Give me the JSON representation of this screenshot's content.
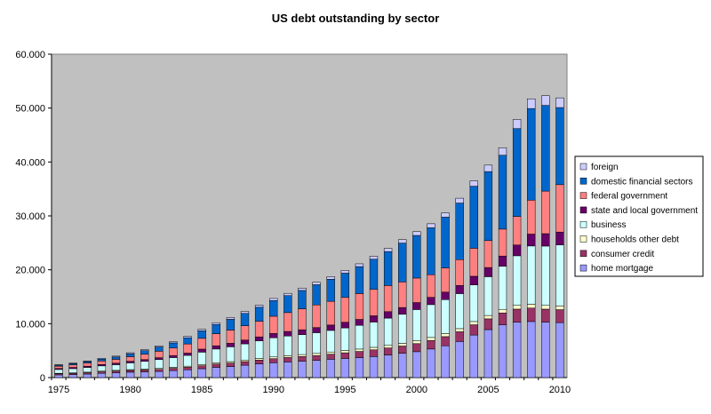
{
  "chart_data": {
    "type": "bar",
    "stacked": true,
    "title": "US debt outstanding by sector",
    "xlabel": "",
    "ylabel": "",
    "ylim": [
      0,
      60000
    ],
    "yticks": [
      "0",
      "10.000",
      "20.000",
      "30.000",
      "40.000",
      "50.000",
      "60.000"
    ],
    "ytick_values": [
      0,
      10000,
      20000,
      30000,
      40000,
      50000,
      60000
    ],
    "xticks": [
      "1975",
      "1980",
      "1985",
      "1990",
      "1995",
      "2000",
      "2005",
      "2010"
    ],
    "categories": [
      1975,
      1976,
      1977,
      1978,
      1979,
      1980,
      1981,
      1982,
      1983,
      1984,
      1985,
      1986,
      1987,
      1988,
      1989,
      1990,
      1991,
      1992,
      1993,
      1994,
      1995,
      1996,
      1997,
      1998,
      1999,
      2000,
      2001,
      2002,
      2003,
      2004,
      2005,
      2006,
      2007,
      2008,
      2009,
      2010
    ],
    "grid": false,
    "legend_position": "right",
    "plot_background": "#c0c0c0",
    "series": [
      {
        "name": "home mortgage",
        "color": "#9999ff",
        "values": [
          500,
          550,
          650,
          800,
          900,
          1000,
          1050,
          1150,
          1300,
          1450,
          1650,
          1900,
          2050,
          2300,
          2550,
          2750,
          2900,
          3050,
          3200,
          3400,
          3550,
          3700,
          3900,
          4200,
          4500,
          4800,
          5300,
          5900,
          6700,
          7900,
          8900,
          9800,
          10300,
          10400,
          10300,
          10200
        ]
      },
      {
        "name": "consumer credit",
        "color": "#993366",
        "values": [
          200,
          220,
          240,
          270,
          300,
          330,
          360,
          380,
          420,
          460,
          540,
          600,
          640,
          670,
          700,
          760,
          820,
          860,
          900,
          950,
          1050,
          1150,
          1250,
          1300,
          1350,
          1500,
          1600,
          1700,
          1800,
          1900,
          2000,
          2200,
          2400,
          2500,
          2400,
          2400
        ]
      },
      {
        "name": "households other debt",
        "color": "#ffffcc",
        "values": [
          100,
          110,
          120,
          130,
          140,
          150,
          160,
          170,
          190,
          210,
          230,
          250,
          270,
          290,
          300,
          320,
          340,
          360,
          380,
          400,
          420,
          440,
          460,
          480,
          500,
          520,
          540,
          560,
          580,
          600,
          620,
          650,
          700,
          720,
          700,
          700
        ]
      },
      {
        "name": "business",
        "color": "#ccffff",
        "values": [
          700,
          780,
          870,
          970,
          1050,
          1250,
          1450,
          1650,
          1800,
          2000,
          2300,
          2550,
          2750,
          3000,
          3250,
          3550,
          3650,
          3700,
          3850,
          4000,
          4200,
          4400,
          4700,
          5050,
          5400,
          5800,
          6100,
          6300,
          6500,
          6800,
          7200,
          8000,
          9200,
          10800,
          11000,
          11300
        ]
      },
      {
        "name": "state and local government",
        "color": "#660066",
        "values": [
          200,
          220,
          240,
          260,
          280,
          300,
          320,
          340,
          380,
          420,
          560,
          600,
          650,
          700,
          750,
          800,
          850,
          900,
          950,
          1000,
          1050,
          1100,
          1150,
          1200,
          1250,
          1300,
          1350,
          1400,
          1500,
          1600,
          1700,
          1900,
          2000,
          2200,
          2300,
          2400
        ]
      },
      {
        "name": "federal government",
        "color": "#ff8080",
        "values": [
          400,
          480,
          570,
          650,
          720,
          850,
          1000,
          1200,
          1400,
          1700,
          2000,
          2250,
          2450,
          2650,
          2900,
          3200,
          3500,
          3900,
          4200,
          4400,
          4600,
          4800,
          4900,
          4850,
          4750,
          4550,
          4200,
          4500,
          4800,
          5200,
          5000,
          5000,
          5300,
          6300,
          7900,
          8800
        ]
      },
      {
        "name": "domestic financial sectors",
        "color": "#0066cc",
        "values": [
          200,
          230,
          280,
          350,
          430,
          550,
          650,
          780,
          950,
          1150,
          1400,
          1700,
          2000,
          2300,
          2600,
          2900,
          3150,
          3400,
          3750,
          4100,
          4500,
          5000,
          5600,
          6300,
          7200,
          7900,
          8700,
          9400,
          10500,
          11500,
          12800,
          13700,
          16300,
          17000,
          15900,
          14300
        ]
      },
      {
        "name": "foreign",
        "color": "#ccccff",
        "values": [
          100,
          110,
          120,
          140,
          160,
          180,
          200,
          220,
          240,
          260,
          280,
          300,
          330,
          360,
          380,
          400,
          420,
          440,
          460,
          480,
          500,
          520,
          550,
          600,
          650,
          700,
          750,
          800,
          900,
          1000,
          1200,
          1400,
          1700,
          1800,
          1800,
          1800
        ]
      }
    ]
  }
}
